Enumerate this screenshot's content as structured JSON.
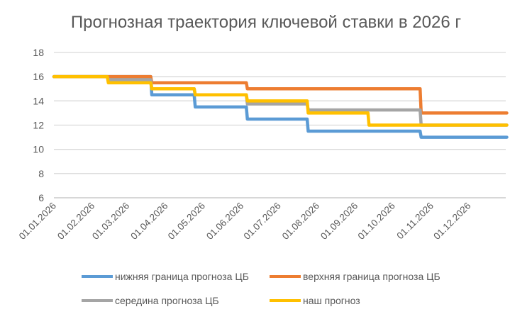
{
  "chart_data": {
    "type": "line",
    "title": "Прогнозная траектория ключевой ставки в 2026 г",
    "xlabel": "",
    "ylabel": "",
    "ylim": [
      6,
      18
    ],
    "yticks": [
      6,
      8,
      10,
      12,
      14,
      16,
      18
    ],
    "xlim": [
      "2026-01-01",
      "2026-12-31"
    ],
    "xtick_labels": [
      "01.01.2026",
      "01.02.2026",
      "01.03.2026",
      "01.04.2026",
      "01.05.2026",
      "01.06.2026",
      "01.07.2026",
      "01.08.2026",
      "01.09.2026",
      "01.10.2026",
      "01.11.2026",
      "01.12.2026"
    ],
    "grid": true,
    "legend_position": "bottom",
    "step": "after",
    "series": [
      {
        "name": "нижняя граница прогноза ЦБ",
        "color": "#5B9BD5",
        "points": [
          [
            "2026-01-01",
            16
          ],
          [
            "2026-03-20",
            14.5
          ],
          [
            "2026-04-24",
            13.5
          ],
          [
            "2026-06-05",
            12.5
          ],
          [
            "2026-07-24",
            11.5
          ],
          [
            "2026-10-23",
            11
          ],
          [
            "2026-12-31",
            11
          ]
        ]
      },
      {
        "name": "верхняя граница прогноза ЦБ",
        "color": "#ED7D31",
        "points": [
          [
            "2026-01-01",
            16
          ],
          [
            "2026-03-20",
            15.5
          ],
          [
            "2026-06-05",
            15
          ],
          [
            "2026-10-23",
            13
          ],
          [
            "2026-12-31",
            13
          ]
        ]
      },
      {
        "name": "середина прогноза ЦБ",
        "color": "#A5A5A5",
        "points": [
          [
            "2026-01-01",
            16
          ],
          [
            "2026-02-13",
            15.75
          ],
          [
            "2026-03-20",
            15
          ],
          [
            "2026-04-24",
            14.5
          ],
          [
            "2026-06-05",
            13.75
          ],
          [
            "2026-07-24",
            13.25
          ],
          [
            "2026-10-23",
            12
          ],
          [
            "2026-12-31",
            12
          ]
        ]
      },
      {
        "name": "наш прогноз",
        "color": "#FFC000",
        "points": [
          [
            "2026-01-01",
            16
          ],
          [
            "2026-02-13",
            15.5
          ],
          [
            "2026-03-20",
            15
          ],
          [
            "2026-04-24",
            14.5
          ],
          [
            "2026-06-05",
            14
          ],
          [
            "2026-07-24",
            13
          ],
          [
            "2026-09-11",
            12
          ],
          [
            "2026-12-31",
            12
          ]
        ]
      }
    ]
  }
}
